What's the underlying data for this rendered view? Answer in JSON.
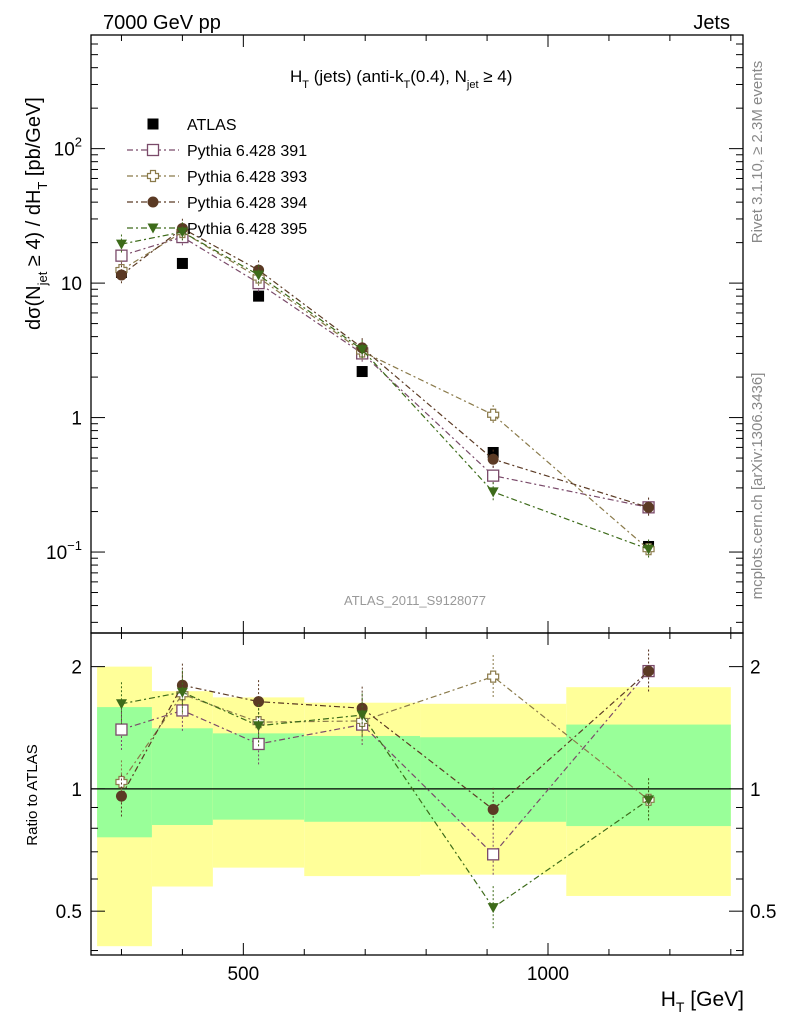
{
  "header": {
    "left": "7000 GeV pp",
    "right": "Jets"
  },
  "side_labels": {
    "rivet": "Rivet 3.1.10, ≥ 2.3M events",
    "mcplots": "mcplots.cern.ch [arXiv:1306.3436]"
  },
  "watermark": "ATLAS_2011_S9128077",
  "colors": {
    "atlas": "#000000",
    "p391": "#7a4a6a",
    "p393": "#8a7a4a",
    "p394": "#5b3a24",
    "p395": "#3d6b1a",
    "band_yellow": "#ffff99",
    "band_green": "#99ff99"
  },
  "chart_data": [
    {
      "type": "scatter",
      "title": "H_T (jets) (anti-k_T(0.4), N_jet ≥ 4)",
      "ylabel": "dσ(N_jet ≥ 4) / dH_T [pb/GeV]",
      "xlabel": "H_T [GeV]",
      "y_scale": "log",
      "ylim": [
        0.025,
        700
      ],
      "xlim": [
        250,
        1320
      ],
      "y_ticks": [
        {
          "value": 0.1,
          "base": "10",
          "exp": "−1"
        },
        {
          "value": 1,
          "label": "1"
        },
        {
          "value": 10,
          "label": "10"
        },
        {
          "value": 100,
          "base": "10",
          "exp": "2"
        }
      ],
      "legend_position": "top-left",
      "x": [
        300,
        400,
        525,
        695,
        910,
        1165
      ],
      "series": [
        {
          "name": "ATLAS",
          "key": "atlas",
          "marker": "square-filled",
          "values": [
            12,
            14,
            8,
            2.2,
            0.55,
            0.11
          ]
        },
        {
          "name": "Pythia 6.428 391",
          "key": "p391",
          "marker": "square-open",
          "values": [
            16,
            22,
            10,
            3.0,
            0.37,
            0.215
          ]
        },
        {
          "name": "Pythia 6.428 393",
          "key": "p393",
          "marker": "cross-open",
          "values": [
            12.5,
            24,
            11,
            3.1,
            1.05,
            0.105
          ]
        },
        {
          "name": "Pythia 6.428 394",
          "key": "p394",
          "marker": "circle-filled",
          "values": [
            11.5,
            25.5,
            12.5,
            3.3,
            0.49,
            0.215
          ]
        },
        {
          "name": "Pythia 6.428 395",
          "key": "p395",
          "marker": "triangle-down-filled",
          "values": [
            19.5,
            24,
            11.5,
            3.2,
            0.28,
            0.105
          ]
        }
      ]
    },
    {
      "type": "scatter",
      "ylabel": "Ratio to ATLAS",
      "y_scale": "log",
      "ylim": [
        0.39,
        2.42
      ],
      "xlim": [
        250,
        1320
      ],
      "x_ticks": [
        500,
        1000
      ],
      "y_ticks": [
        0.5,
        1,
        2
      ],
      "y_tick_labels": [
        "0.5",
        "1",
        "2"
      ],
      "reference_line": 1,
      "bands": {
        "edges": [
          260,
          350,
          450,
          600,
          790,
          1030,
          1300
        ],
        "yellow_low": [
          0.41,
          0.575,
          0.64,
          0.61,
          0.615,
          0.545,
          0.545
        ],
        "yellow_high": [
          2.0,
          1.74,
          1.68,
          1.63,
          1.62,
          1.78,
          1.78
        ],
        "green_low": [
          0.76,
          0.815,
          0.84,
          0.83,
          0.83,
          0.81,
          0.81
        ],
        "green_high": [
          1.59,
          1.41,
          1.37,
          1.35,
          1.34,
          1.44,
          1.44
        ]
      },
      "series": [
        {
          "name": "Pythia 6.428 391",
          "key": "p391",
          "values": [
            1.4,
            1.56,
            1.29,
            1.44,
            0.69,
            1.95
          ]
        },
        {
          "name": "Pythia 6.428 393",
          "key": "p393",
          "values": [
            1.04,
            1.71,
            1.46,
            1.47,
            1.89,
            0.94
          ]
        },
        {
          "name": "Pythia 6.428 394",
          "key": "p394",
          "values": [
            0.96,
            1.8,
            1.64,
            1.58,
            0.89,
            1.95
          ]
        },
        {
          "name": "Pythia 6.428 395",
          "key": "p395",
          "values": [
            1.62,
            1.73,
            1.43,
            1.52,
            0.51,
            0.94
          ]
        }
      ]
    }
  ]
}
